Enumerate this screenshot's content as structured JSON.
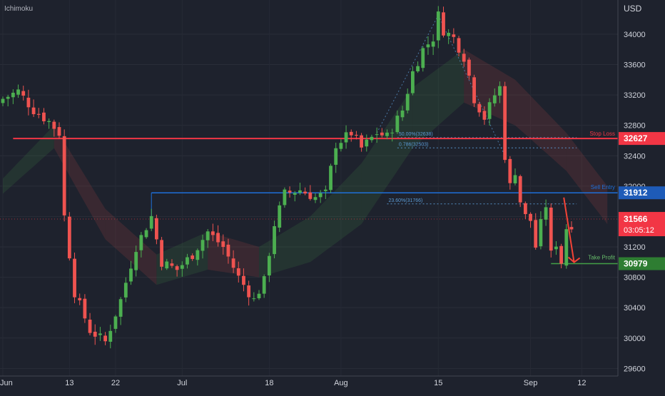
{
  "indicator_label": "Ichimoku",
  "currency": "USD",
  "colors": {
    "background": "#1e222d",
    "up": "#4caf50",
    "down": "#ef5350",
    "stop_loss": "#f23645",
    "entry": "#1e6fd9",
    "take_profit": "#43a047",
    "fib": "#5b9bd5",
    "axis_text": "#d1d4dc"
  },
  "chart_data": {
    "type": "candlestick",
    "y_axis": {
      "min": 29500,
      "max": 34450,
      "ticks": [
        29600,
        30000,
        30400,
        30800,
        31200,
        31600,
        32000,
        32400,
        32800,
        33200,
        33600,
        34000
      ]
    },
    "x_ticks": [
      "Jun",
      "13",
      "22",
      "Jul",
      "18",
      "Aug",
      "15",
      "Sep",
      "12"
    ],
    "x_tick_positions": [
      0,
      13,
      22,
      35,
      52,
      66,
      85,
      103,
      113
    ],
    "levels": [
      {
        "name": "Stop Loss",
        "value": 32627,
        "label": "32627"
      },
      {
        "name": "Sell Entry",
        "value": 31912,
        "label": "31912"
      },
      {
        "name": "Take Profit",
        "value": 30979,
        "label": "30979"
      }
    ],
    "fib_levels": [
      {
        "label": "50.00%(32638)",
        "value": 32638
      },
      {
        "label": "0.786(32503)",
        "value": 32503
      },
      {
        "label": "23.60%(31766)",
        "value": 31766
      }
    ],
    "current_price": {
      "value": 31566,
      "label": "31566",
      "countdown": "03:05:12"
    },
    "anchors": [
      [
        0,
        33150
      ],
      [
        3,
        33250
      ],
      [
        6,
        33000
      ],
      [
        9,
        32850
      ],
      [
        11,
        32700
      ],
      [
        12,
        31600
      ],
      [
        14,
        30600
      ],
      [
        17,
        30100
      ],
      [
        20,
        29950
      ],
      [
        23,
        30500
      ],
      [
        26,
        31200
      ],
      [
        29,
        31600
      ],
      [
        31,
        31000
      ],
      [
        34,
        30900
      ],
      [
        37,
        31100
      ],
      [
        40,
        31400
      ],
      [
        43,
        31200
      ],
      [
        46,
        30800
      ],
      [
        49,
        30500
      ],
      [
        51,
        30750
      ],
      [
        53,
        31500
      ],
      [
        55,
        31900
      ],
      [
        58,
        31950
      ],
      [
        61,
        31850
      ],
      [
        63,
        31900
      ],
      [
        65,
        32550
      ],
      [
        68,
        32700
      ],
      [
        70,
        32500
      ],
      [
        73,
        32700
      ],
      [
        75,
        32650
      ],
      [
        78,
        33000
      ],
      [
        80,
        33500
      ],
      [
        82,
        33800
      ],
      [
        84,
        33950
      ],
      [
        85,
        34250
      ],
      [
        86,
        34050
      ],
      [
        88,
        33950
      ],
      [
        90,
        33700
      ],
      [
        91,
        33450
      ],
      [
        92,
        33150
      ],
      [
        94,
        32900
      ],
      [
        96,
        33200
      ],
      [
        97,
        33300
      ],
      [
        98,
        32400
      ],
      [
        99,
        32000
      ],
      [
        100,
        32200
      ],
      [
        101,
        31800
      ],
      [
        102,
        31600
      ],
      [
        103,
        31550
      ],
      [
        104,
        31200
      ],
      [
        105,
        31500
      ],
      [
        106,
        31750
      ],
      [
        107,
        31100
      ],
      [
        108,
        31250
      ],
      [
        109,
        31000
      ],
      [
        110,
        31450
      ],
      [
        111,
        31500
      ]
    ],
    "cloud": [
      [
        0,
        31900,
        32100
      ],
      [
        10,
        32500,
        32800
      ],
      [
        20,
        31300,
        31700
      ],
      [
        30,
        30700,
        31100
      ],
      [
        40,
        30900,
        31400
      ],
      [
        50,
        30800,
        31200
      ],
      [
        60,
        31000,
        31600
      ],
      [
        70,
        31500,
        32300
      ],
      [
        80,
        32500,
        33300
      ],
      [
        90,
        33100,
        33800
      ],
      [
        100,
        32800,
        33400
      ],
      [
        110,
        32200,
        32700
      ],
      [
        118,
        31500,
        32000
      ]
    ],
    "arrow_target": 30979
  }
}
